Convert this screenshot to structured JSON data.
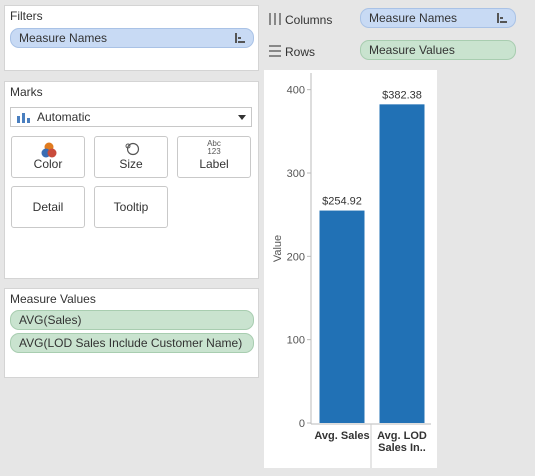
{
  "filters": {
    "title": "Filters",
    "pills": [
      "Measure Names"
    ]
  },
  "marks": {
    "title": "Marks",
    "type": "Automatic",
    "buttons": {
      "color": "Color",
      "size": "Size",
      "label": "Label",
      "label_icon_top": "Abc",
      "label_icon_bottom": "123",
      "detail": "Detail",
      "tooltip": "Tooltip"
    }
  },
  "measure_values": {
    "title": "Measure Values",
    "pills": [
      "AVG(Sales)",
      "AVG(LOD Sales Include Customer Name)"
    ]
  },
  "shelves": {
    "columns_label": "Columns",
    "columns_pill": "Measure Names",
    "rows_label": "Rows",
    "rows_pill": "Measure Values"
  },
  "colors": {
    "bar": "#2171b5",
    "blue_pill": "#c8daf4",
    "green_pill": "#c9e3cf"
  },
  "chart_data": {
    "type": "bar",
    "categories": [
      "Avg. Sales",
      "Avg. LOD Sales In.."
    ],
    "category_lines": [
      [
        "Avg. Sales"
      ],
      [
        "Avg. LOD",
        "Sales In.."
      ]
    ],
    "values": [
      254.92,
      382.38
    ],
    "data_labels": [
      "$254.92",
      "$382.38"
    ],
    "ylabel": "Value",
    "ylim": [
      0,
      420
    ],
    "yticks": [
      0,
      100,
      200,
      300,
      400
    ],
    "grid": false
  }
}
